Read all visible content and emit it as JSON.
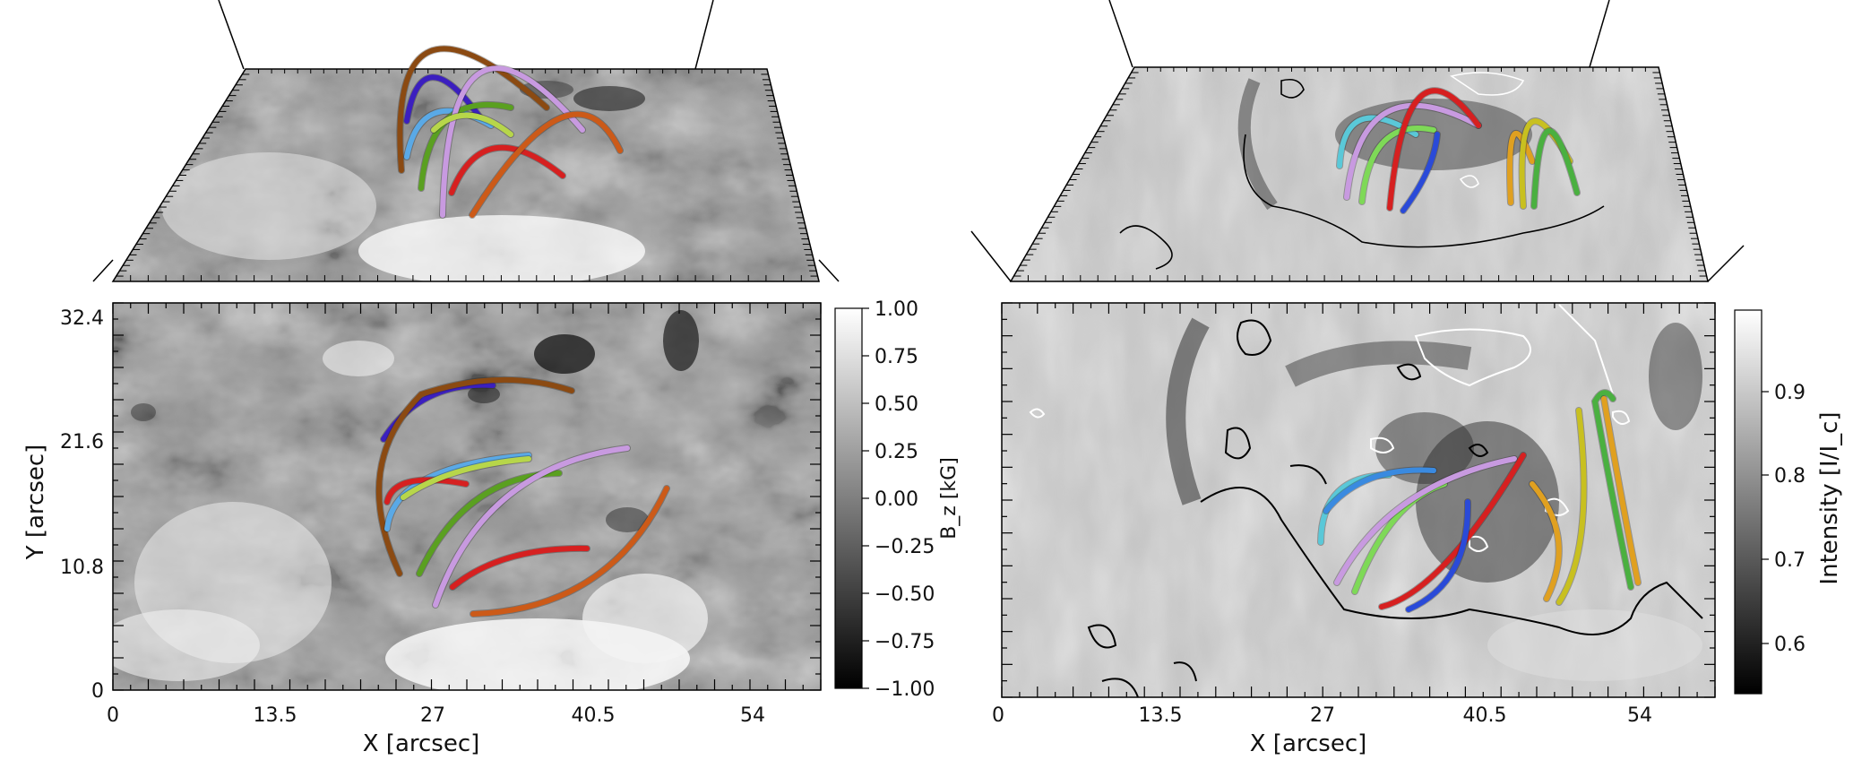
{
  "left_panel": {
    "x_axis": {
      "title": "X [arcsec]",
      "ticks": [
        "0",
        "13.5",
        "27",
        "40.5",
        "54"
      ]
    },
    "y_axis": {
      "title": "Y [arcsec]",
      "ticks": [
        "32.4",
        "21.6",
        "10.8",
        "0"
      ]
    },
    "colorbar": {
      "title": "B_z [kG]",
      "ticks": [
        "1.00",
        "0.75",
        "0.50",
        "0.25",
        "0.00",
        "−0.25",
        "−0.50",
        "−0.75",
        "−1.00"
      ]
    }
  },
  "right_panel": {
    "x_axis": {
      "title": "X [arcsec]",
      "ticks": [
        "0",
        "13.5",
        "27",
        "40.5",
        "54"
      ]
    },
    "colorbar": {
      "title": "Intensity [I/I_c]",
      "ticks": [
        "0.9",
        "0.8",
        "0.7",
        "0.6"
      ]
    }
  },
  "colors": {
    "field_lines_left": [
      "#3b1fbf",
      "#8b4a12",
      "#5aa9e6",
      "#d62020",
      "#b7d64a",
      "#5aa020",
      "#c89ae0",
      "#cc5a18"
    ],
    "field_lines_right": [
      "#5ac8d8",
      "#3a8ae0",
      "#7ed957",
      "#c89ae0",
      "#d62020",
      "#2a4ad8",
      "#e0a020",
      "#c8c020",
      "#4ab040"
    ]
  }
}
